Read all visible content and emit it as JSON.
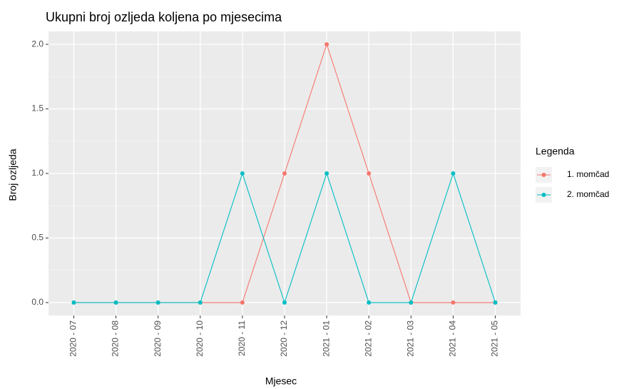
{
  "chart_data": {
    "type": "line",
    "title": "Ukupni broj ozljeda koljena po mjesecima",
    "x_label": "Mjesec",
    "y_label": "Broj ozljeda",
    "legend_title": "Legenda",
    "legend": "right",
    "grid": true,
    "categories": [
      "2020 - 07",
      "2020 - 08",
      "2020 - 09",
      "2020 - 10",
      "2020 - 11",
      "2020 - 12",
      "2021 - 01",
      "2021 - 02",
      "2021 - 03",
      "2021 - 04",
      "2021 - 05"
    ],
    "series": [
      {
        "name": "1. momčad",
        "color": "#F8766D",
        "values": [
          0,
          0,
          0,
          0,
          0,
          1,
          2,
          1,
          0,
          0,
          0
        ]
      },
      {
        "name": "2. momčad",
        "color": "#00BFC4",
        "values": [
          0,
          0,
          0,
          0,
          1,
          0,
          1,
          0,
          0,
          1,
          0
        ]
      }
    ],
    "ylim": [
      -0.1,
      2.1
    ],
    "yticks": [
      {
        "value": 0,
        "label": "0.0"
      },
      {
        "value": 0.5,
        "label": "0.5"
      },
      {
        "value": 1,
        "label": "1.0"
      },
      {
        "value": 1.5,
        "label": "1.5"
      },
      {
        "value": 2,
        "label": "2.0"
      }
    ]
  }
}
